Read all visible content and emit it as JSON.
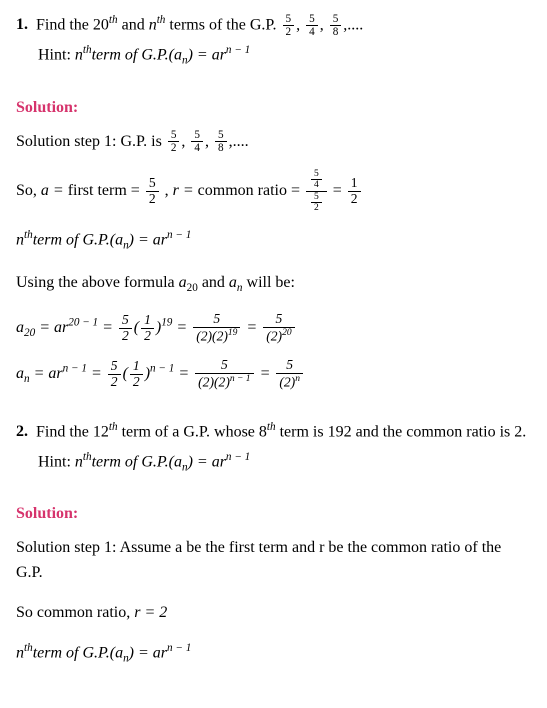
{
  "problems": [
    {
      "number": "1.",
      "question_prefix": "Find the ",
      "term1": "20",
      "term1_suffix": "th",
      "mid1": " and ",
      "term2": "n",
      "term2_suffix": "th",
      "mid2": " terms of the G.P. ",
      "gp_terms": [
        "5",
        "2",
        "5",
        "4",
        "5",
        "8"
      ],
      "gp_tail": ",....",
      "hint_label": "Hint: ",
      "hint_text1": "n",
      "hint_suffix1": "th",
      "hint_text2": "term of G.P.(a",
      "hint_sub": "n",
      "hint_text3": ") = ar",
      "hint_sup": "n − 1",
      "solution_label": "Solution:",
      "step1_prefix": "Solution step 1: G.P. is ",
      "so_prefix": "So, ",
      "a_eq": "a = ",
      "first_term_text": " first term ",
      "eq_sym": "= ",
      "r_eq": "r = ",
      "common_ratio_text": " common ratio ",
      "formula_intro": "Using the above formula ",
      "a20": "a",
      "a20_sub": "20",
      "and_text": " and ",
      "an": "a",
      "an_sub": "n",
      "will_be": " will be:",
      "nth_formula_line": "n",
      "exp_20m1": "20 − 1",
      "exp_19": "19",
      "exp_nm1": "n − 1",
      "val_5": "5",
      "val_2": "2",
      "val_1": "1",
      "val_20": "20",
      "paren2_2_19": "(2)(2)",
      "denom_220": "(2)",
      "denom_2n": "(2)"
    },
    {
      "number": "2.",
      "question_prefix": "Find the ",
      "term1": "12",
      "term1_suffix": "th",
      "mid1": " term of a G.P. whose ",
      "term2": "8",
      "term2_suffix": "th",
      "mid2": " term is 192 and the common ratio is ",
      "ratio_val": "2.",
      "hint_label": "Hint: ",
      "hint_text1": "n",
      "hint_suffix1": "th",
      "hint_text2": "term of G.P.(a",
      "hint_sub": "n",
      "hint_text3": ") = ar",
      "hint_sup": "n − 1",
      "solution_label": "Solution:",
      "step1_text": "Solution step 1: Assume a be the first term and r be the common ratio of the G.P.",
      "step2_prefix": "So common ratio, ",
      "r_val": "r = 2",
      "nth_line1": "n",
      "nth_suffix": "th",
      "nth_line2": "term of G.P.(a",
      "nth_sub": "n",
      "nth_line3": ") = ar",
      "nth_sup": "n − 1"
    }
  ],
  "colors": {
    "text": "#000000",
    "solution_label": "#d6336c",
    "background": "#ffffff"
  }
}
